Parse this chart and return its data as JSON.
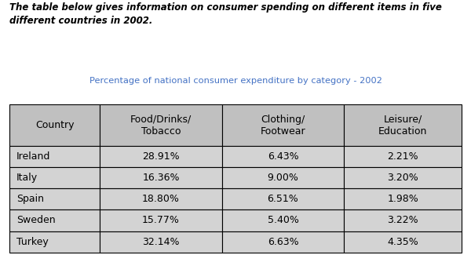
{
  "title_text": "The table below gives information on consumer spending on different items in five\ndifferent countries in 2002.",
  "subtitle_text": "Percentage of national consumer expenditure by category - 2002",
  "subtitle_color": "#4472C4",
  "title_color": "#000000",
  "columns": [
    "Country",
    "Food/Drinks/\nTobacco",
    "Clothing/\nFootwear",
    "Leisure/\nEducation"
  ],
  "rows": [
    [
      "Ireland",
      "28.91%",
      "6.43%",
      "2.21%"
    ],
    [
      "Italy",
      "16.36%",
      "9.00%",
      "3.20%"
    ],
    [
      "Spain",
      "18.80%",
      "6.51%",
      "1.98%"
    ],
    [
      "Sweden",
      "15.77%",
      "5.40%",
      "3.22%"
    ],
    [
      "Turkey",
      "32.14%",
      "6.63%",
      "4.35%"
    ]
  ],
  "header_bg": "#C0C0C0",
  "row_bg": "#D3D3D3",
  "cell_text_color": "#000000",
  "border_color": "#000000",
  "background_color": "#FFFFFF",
  "title_fontsize": 8.5,
  "subtitle_fontsize": 8.2,
  "header_fontsize": 9,
  "cell_fontsize": 9
}
